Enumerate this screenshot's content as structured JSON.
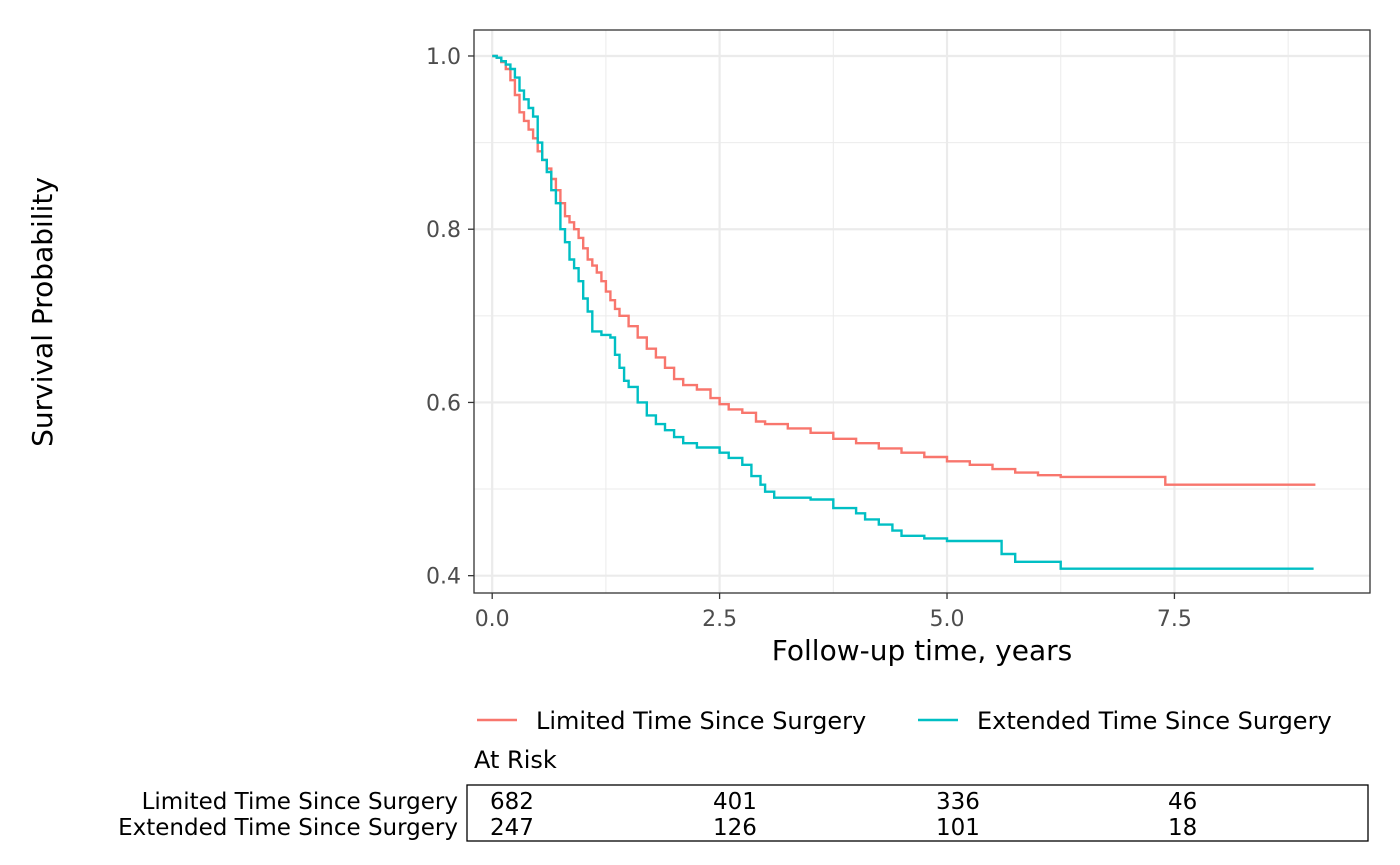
{
  "chart_data": {
    "type": "line",
    "subtype": "kaplan-meier survival curve",
    "xlabel": "Follow-up time, years",
    "ylabel": "Survival Probability",
    "xlim": [
      -0.2,
      9.65
    ],
    "ylim": [
      0.38,
      1.03
    ],
    "x_ticks": [
      0,
      2.5,
      5,
      7.5
    ],
    "x_tick_labels": [
      "0.0",
      "2.5",
      "5.0",
      "7.5"
    ],
    "y_ticks": [
      0.4,
      0.6,
      0.8,
      1.0
    ],
    "y_tick_labels": [
      "0.4",
      "0.6",
      "0.8",
      "1.0"
    ],
    "grid": true,
    "legend_position": "bottom",
    "series": [
      {
        "name": "Limited Time Since Surgery",
        "color": "#F8766D",
        "points": [
          [
            0.0,
            1.0
          ],
          [
            0.05,
            0.998
          ],
          [
            0.1,
            0.993
          ],
          [
            0.15,
            0.985
          ],
          [
            0.2,
            0.972
          ],
          [
            0.25,
            0.955
          ],
          [
            0.3,
            0.935
          ],
          [
            0.35,
            0.925
          ],
          [
            0.4,
            0.915
          ],
          [
            0.45,
            0.905
          ],
          [
            0.5,
            0.89
          ],
          [
            0.55,
            0.88
          ],
          [
            0.6,
            0.87
          ],
          [
            0.65,
            0.858
          ],
          [
            0.7,
            0.845
          ],
          [
            0.75,
            0.83
          ],
          [
            0.8,
            0.815
          ],
          [
            0.85,
            0.808
          ],
          [
            0.9,
            0.8
          ],
          [
            0.95,
            0.79
          ],
          [
            1.0,
            0.778
          ],
          [
            1.05,
            0.765
          ],
          [
            1.1,
            0.758
          ],
          [
            1.15,
            0.75
          ],
          [
            1.2,
            0.74
          ],
          [
            1.25,
            0.728
          ],
          [
            1.3,
            0.718
          ],
          [
            1.35,
            0.708
          ],
          [
            1.4,
            0.7
          ],
          [
            1.5,
            0.688
          ],
          [
            1.6,
            0.675
          ],
          [
            1.7,
            0.662
          ],
          [
            1.8,
            0.652
          ],
          [
            1.9,
            0.64
          ],
          [
            2.0,
            0.627
          ],
          [
            2.1,
            0.62
          ],
          [
            2.25,
            0.615
          ],
          [
            2.4,
            0.605
          ],
          [
            2.5,
            0.598
          ],
          [
            2.6,
            0.592
          ],
          [
            2.75,
            0.588
          ],
          [
            2.9,
            0.578
          ],
          [
            3.0,
            0.575
          ],
          [
            3.25,
            0.57
          ],
          [
            3.5,
            0.565
          ],
          [
            3.75,
            0.558
          ],
          [
            4.0,
            0.553
          ],
          [
            4.25,
            0.547
          ],
          [
            4.5,
            0.542
          ],
          [
            4.75,
            0.537
          ],
          [
            5.0,
            0.532
          ],
          [
            5.25,
            0.528
          ],
          [
            5.5,
            0.523
          ],
          [
            5.75,
            0.519
          ],
          [
            6.0,
            0.516
          ],
          [
            6.25,
            0.514
          ],
          [
            6.75,
            0.514
          ],
          [
            7.35,
            0.514
          ],
          [
            7.4,
            0.505
          ],
          [
            9.05,
            0.505
          ]
        ]
      },
      {
        "name": "Extended Time Since Surgery",
        "color": "#00BFC4",
        "points": [
          [
            0.0,
            1.0
          ],
          [
            0.05,
            0.998
          ],
          [
            0.1,
            0.994
          ],
          [
            0.15,
            0.99
          ],
          [
            0.2,
            0.985
          ],
          [
            0.25,
            0.975
          ],
          [
            0.3,
            0.96
          ],
          [
            0.35,
            0.95
          ],
          [
            0.4,
            0.94
          ],
          [
            0.45,
            0.93
          ],
          [
            0.5,
            0.9
          ],
          [
            0.55,
            0.88
          ],
          [
            0.6,
            0.866
          ],
          [
            0.65,
            0.845
          ],
          [
            0.7,
            0.83
          ],
          [
            0.75,
            0.8
          ],
          [
            0.8,
            0.785
          ],
          [
            0.85,
            0.765
          ],
          [
            0.9,
            0.755
          ],
          [
            0.95,
            0.74
          ],
          [
            1.0,
            0.72
          ],
          [
            1.05,
            0.705
          ],
          [
            1.1,
            0.682
          ],
          [
            1.2,
            0.678
          ],
          [
            1.3,
            0.675
          ],
          [
            1.35,
            0.655
          ],
          [
            1.4,
            0.64
          ],
          [
            1.45,
            0.625
          ],
          [
            1.5,
            0.618
          ],
          [
            1.6,
            0.6
          ],
          [
            1.7,
            0.585
          ],
          [
            1.8,
            0.575
          ],
          [
            1.9,
            0.568
          ],
          [
            2.0,
            0.56
          ],
          [
            2.1,
            0.553
          ],
          [
            2.25,
            0.548
          ],
          [
            2.5,
            0.542
          ],
          [
            2.6,
            0.536
          ],
          [
            2.75,
            0.528
          ],
          [
            2.85,
            0.515
          ],
          [
            2.95,
            0.505
          ],
          [
            3.0,
            0.497
          ],
          [
            3.1,
            0.49
          ],
          [
            3.25,
            0.49
          ],
          [
            3.5,
            0.488
          ],
          [
            3.75,
            0.478
          ],
          [
            4.0,
            0.472
          ],
          [
            4.1,
            0.465
          ],
          [
            4.25,
            0.459
          ],
          [
            4.4,
            0.452
          ],
          [
            4.5,
            0.446
          ],
          [
            4.75,
            0.443
          ],
          [
            5.0,
            0.44
          ],
          [
            5.5,
            0.44
          ],
          [
            5.6,
            0.425
          ],
          [
            5.75,
            0.416
          ],
          [
            6.0,
            0.416
          ],
          [
            6.25,
            0.408
          ],
          [
            7.0,
            0.408
          ],
          [
            9.03,
            0.408
          ]
        ]
      }
    ],
    "at_risk": {
      "title": "At Risk",
      "times": [
        0,
        2.5,
        5,
        7.5
      ],
      "rows": [
        {
          "label": "Limited Time Since Surgery",
          "values": [
            "682",
            "401",
            "336",
            "46"
          ]
        },
        {
          "label": "Extended Time Since Surgery",
          "values": [
            "247",
            "126",
            "101",
            "18"
          ]
        }
      ]
    }
  }
}
